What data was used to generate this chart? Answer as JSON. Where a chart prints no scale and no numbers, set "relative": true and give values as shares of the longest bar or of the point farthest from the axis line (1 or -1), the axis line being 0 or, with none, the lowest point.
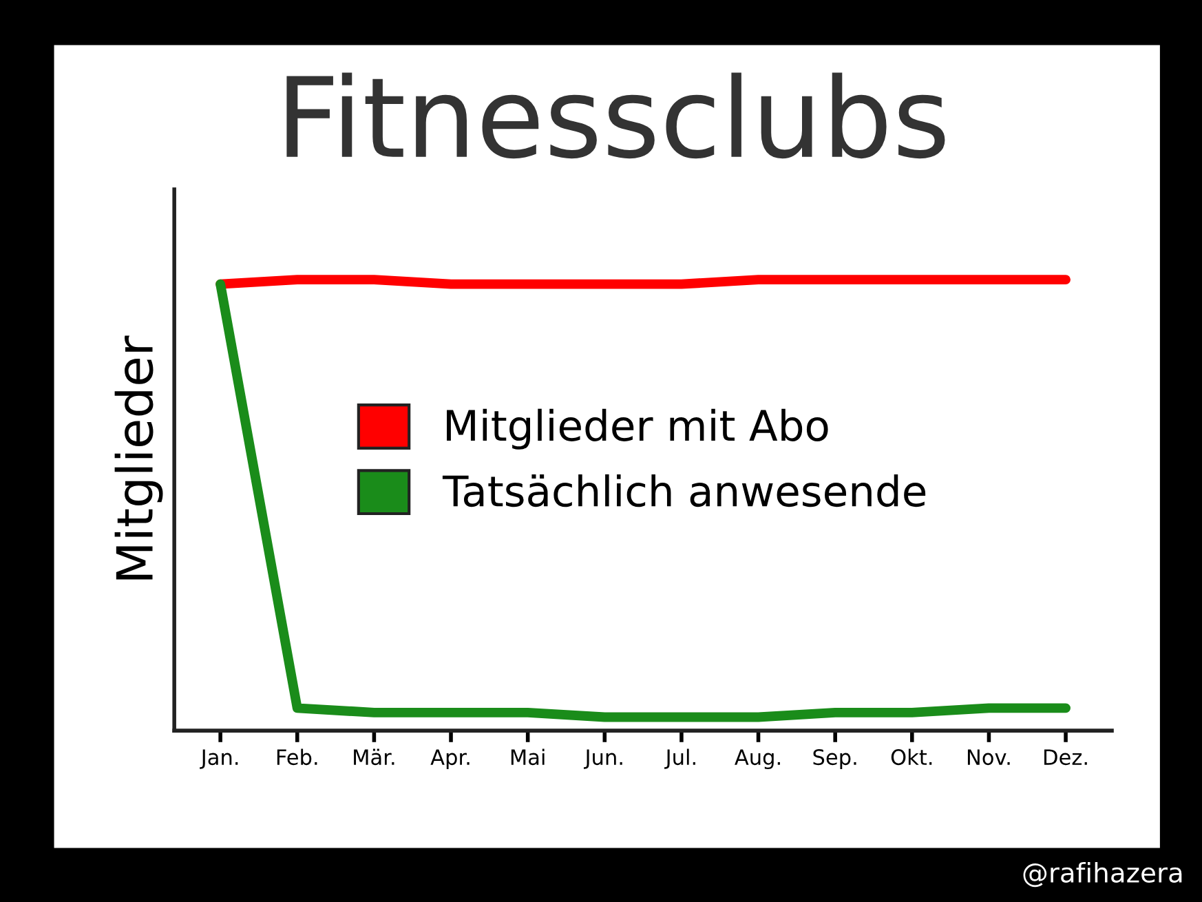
{
  "chart_data": {
    "type": "line",
    "title": "Fitnessclubs",
    "ylabel": "Mitglieder",
    "relative": true,
    "legend": "center",
    "grid": false,
    "marker": "none",
    "line_style": "solid",
    "categories": [
      "Jan.",
      "Feb.",
      "Mär.",
      "Apr.",
      "Mai",
      "Jun.",
      "Jul.",
      "Aug.",
      "Sep.",
      "Okt.",
      "Nov.",
      "Dez."
    ],
    "series": [
      {
        "name": "Mitglieder mit Abo",
        "color": "#ff0000",
        "values": [
          0.99,
          1.0,
          1.0,
          0.99,
          0.99,
          0.99,
          0.99,
          1.0,
          1.0,
          1.0,
          1.0,
          1.0
        ]
      },
      {
        "name": "Tatsächlich anwesende",
        "color": "#1a8c1a",
        "values": [
          0.99,
          0.05,
          0.04,
          0.04,
          0.04,
          0.03,
          0.03,
          0.03,
          0.04,
          0.04,
          0.05,
          0.05
        ]
      }
    ],
    "annotations": [
      "@rafihazera"
    ]
  }
}
